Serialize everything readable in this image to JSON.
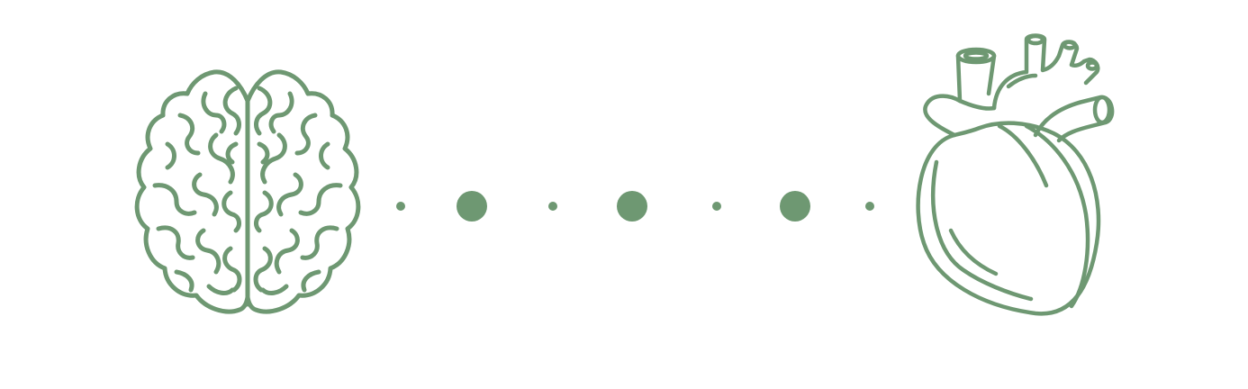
{
  "illustration": {
    "accent_color": "#6e9872",
    "background_color": "#ffffff",
    "left_icon": "brain-icon",
    "right_icon": "anatomical-heart-icon",
    "connector": {
      "style": "dotted-line",
      "dot_sizes": [
        "small",
        "large",
        "small",
        "large",
        "small",
        "large",
        "small"
      ]
    }
  }
}
